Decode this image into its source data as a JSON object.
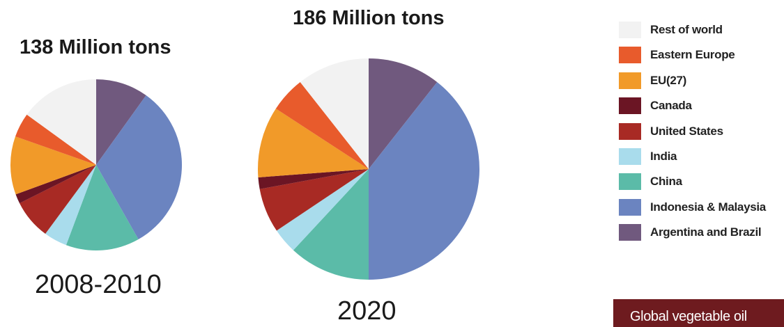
{
  "chart_data": [
    {
      "type": "pie",
      "title": "138 Million tons",
      "period": "2008-2010",
      "slices": [
        {
          "name": "Argentina and Brazil",
          "value": 9.9
        },
        {
          "name": "Indonesia & Malaysia",
          "value": 31.9
        },
        {
          "name": "China",
          "value": 13.9
        },
        {
          "name": "India",
          "value": 4.4
        },
        {
          "name": "United States",
          "value": 7.5
        },
        {
          "name": "Canada",
          "value": 1.8
        },
        {
          "name": "EU(27)",
          "value": 11.0
        },
        {
          "name": "Eastern Europe",
          "value": 4.6
        },
        {
          "name": "Rest of world",
          "value": 15.0
        }
      ]
    },
    {
      "type": "pie",
      "title": "186 Million tons",
      "period": "2020",
      "slices": [
        {
          "name": "Argentina and Brazil",
          "value": 10.6
        },
        {
          "name": "Indonesia & Malaysia",
          "value": 39.4
        },
        {
          "name": "China",
          "value": 11.9
        },
        {
          "name": "India",
          "value": 3.7
        },
        {
          "name": "United States",
          "value": 6.5
        },
        {
          "name": "Canada",
          "value": 1.7
        },
        {
          "name": "EU(27)",
          "value": 10.4
        },
        {
          "name": "Eastern Europe",
          "value": 5.2
        },
        {
          "name": "Rest of world",
          "value": 10.6
        }
      ]
    }
  ],
  "legend": [
    {
      "label": "Rest of world",
      "color": "#f2f2f2"
    },
    {
      "label": "Eastern Europe",
      "color": "#e85b2c"
    },
    {
      "label": "EU(27)",
      "color": "#f19a29"
    },
    {
      "label": "Canada",
      "color": "#6b1524"
    },
    {
      "label": "United States",
      "color": "#a82a24"
    },
    {
      "label": "India",
      "color": "#a9dcec"
    },
    {
      "label": "China",
      "color": "#5bbba8"
    },
    {
      "label": "Indonesia & Malaysia",
      "color": "#6b84c0"
    },
    {
      "label": "Argentina and Brazil",
      "color": "#70597e"
    }
  ],
  "caption": "Global vegetable oil"
}
